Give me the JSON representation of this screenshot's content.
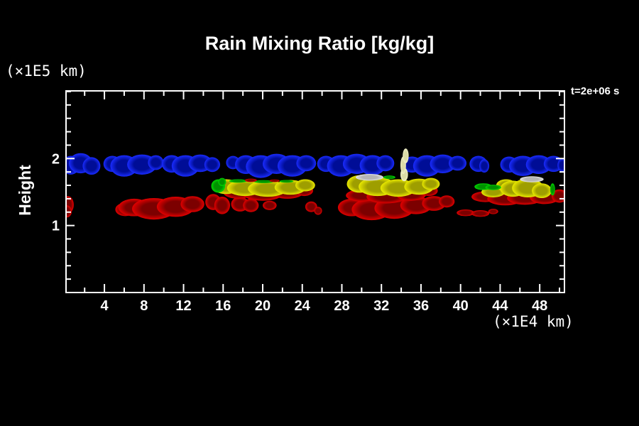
{
  "header": {
    "title": "Rain Mixing Ratio [kg/kg]"
  },
  "labels": {
    "y_units": "(×1E5 km)",
    "x_units": "(×1E4 km)",
    "y_axis": "Height",
    "time": "t=2e+06 s"
  },
  "palette": {
    "background": "#000000",
    "axis": "#ffffff",
    "text": "#ffffff",
    "gradients": {
      "blue": {
        "core": "#000d96",
        "edge": "#1a2cff"
      },
      "red": {
        "core": "#7c0000",
        "edge": "#e10000"
      },
      "yellow": {
        "core": "#9e9e00",
        "edge": "#e9e900"
      },
      "green": {
        "core": "#009100",
        "edge": "#00d800"
      },
      "cream": {
        "core": "#dadaa6",
        "edge": "#f1f1c9"
      },
      "gray": {
        "core": "#b5b5b5",
        "edge": "#e3e3e3"
      }
    }
  },
  "chart_data": {
    "type": "area",
    "title": "Rain Mixing Ratio [kg/kg]",
    "xlabel": "(×1E4 km)",
    "ylabel": "Height (×1E5 km)",
    "time_annotation": "t=2e+06 s",
    "x_range": [
      0.12,
      50.5
    ],
    "y_range": [
      0,
      3.01
    ],
    "x_major_ticks": [
      4,
      8,
      12,
      16,
      20,
      24,
      28,
      32,
      36,
      40,
      44,
      48
    ],
    "x_minor_step": 2,
    "y_major_ticks": [
      1,
      2
    ],
    "y_minor_step": 0.2,
    "grid": false,
    "legend": false,
    "surfaces": [
      {
        "name": "isosurface-blue-upper-band",
        "color": "blue",
        "blobs": [
          [
            0.6,
            1.9,
            0.9,
            0.14
          ],
          [
            1.6,
            1.93,
            1.2,
            0.15
          ],
          [
            2.7,
            1.89,
            0.9,
            0.13
          ],
          [
            4.8,
            1.92,
            0.9,
            0.12
          ],
          [
            6.0,
            1.89,
            1.4,
            0.16
          ],
          [
            7.8,
            1.91,
            1.5,
            0.15
          ],
          [
            9.2,
            1.94,
            0.8,
            0.11
          ],
          [
            10.8,
            1.92,
            1.0,
            0.13
          ],
          [
            12.2,
            1.89,
            1.4,
            0.16
          ],
          [
            13.7,
            1.93,
            1.2,
            0.13
          ],
          [
            14.9,
            1.91,
            0.8,
            0.11
          ],
          [
            17.0,
            1.94,
            0.7,
            0.1
          ],
          [
            18.3,
            1.91,
            1.1,
            0.14
          ],
          [
            19.8,
            1.88,
            1.5,
            0.17
          ],
          [
            21.4,
            1.92,
            1.4,
            0.15
          ],
          [
            23.0,
            1.89,
            1.5,
            0.16
          ],
          [
            24.4,
            1.93,
            1.0,
            0.12
          ],
          [
            26.4,
            1.92,
            0.9,
            0.12
          ],
          [
            27.9,
            1.89,
            1.4,
            0.16
          ],
          [
            29.5,
            1.92,
            1.4,
            0.15
          ],
          [
            31.1,
            1.9,
            1.3,
            0.15
          ],
          [
            32.4,
            1.93,
            0.9,
            0.12
          ],
          [
            35.1,
            1.91,
            1.0,
            0.12
          ],
          [
            36.6,
            1.89,
            1.4,
            0.16
          ],
          [
            38.2,
            1.92,
            1.3,
            0.14
          ],
          [
            39.7,
            1.93,
            0.9,
            0.11
          ],
          [
            41.8,
            1.92,
            0.9,
            0.12
          ],
          [
            42.4,
            1.89,
            0.5,
            0.1
          ],
          [
            44.9,
            1.91,
            0.9,
            0.12
          ],
          [
            46.3,
            1.89,
            1.4,
            0.15
          ],
          [
            47.9,
            1.91,
            1.3,
            0.14
          ],
          [
            49.4,
            1.92,
            1.0,
            0.12
          ],
          [
            50.3,
            1.9,
            0.5,
            0.1
          ]
        ]
      },
      {
        "name": "isosurface-red-lower-band",
        "color": "red",
        "blobs": [
          [
            0.3,
            1.31,
            0.6,
            0.13
          ],
          [
            0.2,
            1.21,
            0.5,
            0.09
          ],
          [
            6.1,
            1.24,
            1.0,
            0.1
          ],
          [
            7.0,
            1.27,
            1.6,
            0.13
          ],
          [
            9.0,
            1.25,
            2.2,
            0.16
          ],
          [
            11.2,
            1.28,
            1.9,
            0.15
          ],
          [
            12.9,
            1.32,
            1.2,
            0.12
          ],
          [
            15.0,
            1.35,
            0.8,
            0.12
          ],
          [
            15.9,
            1.3,
            0.8,
            0.13
          ],
          [
            17.7,
            1.32,
            0.9,
            0.11
          ],
          [
            18.8,
            1.3,
            0.8,
            0.1
          ],
          [
            20.7,
            1.3,
            0.7,
            0.07
          ],
          [
            24.9,
            1.28,
            0.6,
            0.08
          ],
          [
            25.6,
            1.22,
            0.4,
            0.06
          ],
          [
            17.5,
            1.5,
            1.5,
            0.1
          ],
          [
            20.0,
            1.47,
            2.0,
            0.1
          ],
          [
            22.5,
            1.49,
            1.6,
            0.09
          ],
          [
            24.2,
            1.52,
            0.9,
            0.08
          ],
          [
            29.0,
            1.27,
            1.4,
            0.13
          ],
          [
            31.0,
            1.24,
            2.0,
            0.16
          ],
          [
            33.3,
            1.26,
            2.0,
            0.16
          ],
          [
            35.5,
            1.3,
            1.6,
            0.13
          ],
          [
            37.3,
            1.33,
            1.2,
            0.11
          ],
          [
            38.6,
            1.36,
            0.8,
            0.09
          ],
          [
            30.0,
            1.45,
            1.6,
            0.09
          ],
          [
            32.5,
            1.43,
            2.0,
            0.1
          ],
          [
            35.0,
            1.46,
            1.5,
            0.09
          ],
          [
            36.8,
            1.52,
            0.9,
            0.08
          ],
          [
            40.5,
            1.19,
            0.9,
            0.05
          ],
          [
            42.0,
            1.18,
            0.9,
            0.05
          ],
          [
            43.3,
            1.21,
            0.5,
            0.04
          ],
          [
            42.5,
            1.43,
            1.4,
            0.08
          ],
          [
            44.5,
            1.4,
            1.8,
            0.1
          ],
          [
            46.5,
            1.41,
            1.8,
            0.1
          ],
          [
            48.5,
            1.42,
            1.5,
            0.1
          ],
          [
            50.0,
            1.44,
            0.8,
            0.1
          ]
        ]
      },
      {
        "name": "isosurface-yellow-mid-band",
        "color": "yellow",
        "blobs": [
          [
            16.3,
            1.58,
            1.4,
            0.11
          ],
          [
            18.2,
            1.56,
            1.8,
            0.12
          ],
          [
            20.5,
            1.55,
            2.0,
            0.12
          ],
          [
            22.8,
            1.57,
            1.6,
            0.11
          ],
          [
            24.3,
            1.6,
            1.0,
            0.09
          ],
          [
            29.8,
            1.62,
            1.3,
            0.13
          ],
          [
            31.6,
            1.58,
            1.9,
            0.14
          ],
          [
            33.7,
            1.56,
            1.8,
            0.13
          ],
          [
            35.8,
            1.58,
            1.5,
            0.12
          ],
          [
            37.0,
            1.62,
            0.9,
            0.09
          ],
          [
            43.3,
            1.5,
            1.2,
            0.08
          ],
          [
            44.6,
            1.6,
            1.0,
            0.09
          ],
          [
            45.3,
            1.55,
            1.3,
            0.12
          ],
          [
            46.8,
            1.56,
            1.6,
            0.14
          ],
          [
            48.2,
            1.52,
            1.0,
            0.11
          ]
        ]
      },
      {
        "name": "isosurface-green-patches",
        "color": "green",
        "blobs": [
          [
            15.5,
            1.59,
            0.7,
            0.1
          ],
          [
            15.9,
            1.65,
            0.4,
            0.06
          ],
          [
            17.5,
            1.665,
            0.9,
            0.025
          ],
          [
            20.1,
            1.655,
            1.0,
            0.022
          ],
          [
            22.4,
            1.66,
            0.7,
            0.02
          ],
          [
            30.6,
            1.73,
            0.5,
            0.03
          ],
          [
            32.8,
            1.72,
            0.6,
            0.028
          ],
          [
            42.3,
            1.58,
            0.9,
            0.05
          ],
          [
            43.3,
            1.57,
            0.8,
            0.04
          ],
          [
            49.3,
            1.54,
            0.25,
            0.09
          ]
        ]
      },
      {
        "name": "red-top-fringe",
        "color": "red",
        "blobs": [
          [
            18.8,
            1.675,
            0.6,
            0.025
          ],
          [
            21.2,
            1.668,
            0.5,
            0.02
          ],
          [
            30.2,
            1.735,
            0.5,
            0.022
          ]
        ]
      },
      {
        "name": "gray-highlight-patches",
        "color": "gray",
        "blobs": [
          [
            30.8,
            1.72,
            1.4,
            0.05
          ],
          [
            47.2,
            1.69,
            1.2,
            0.045
          ]
        ]
      },
      {
        "name": "cream-updraft-plume",
        "color": "cream",
        "blobs": [
          [
            34.3,
            1.76,
            0.38,
            0.1
          ],
          [
            34.2,
            1.9,
            0.28,
            0.13
          ],
          [
            34.45,
            2.04,
            0.3,
            0.11
          ]
        ]
      }
    ]
  }
}
